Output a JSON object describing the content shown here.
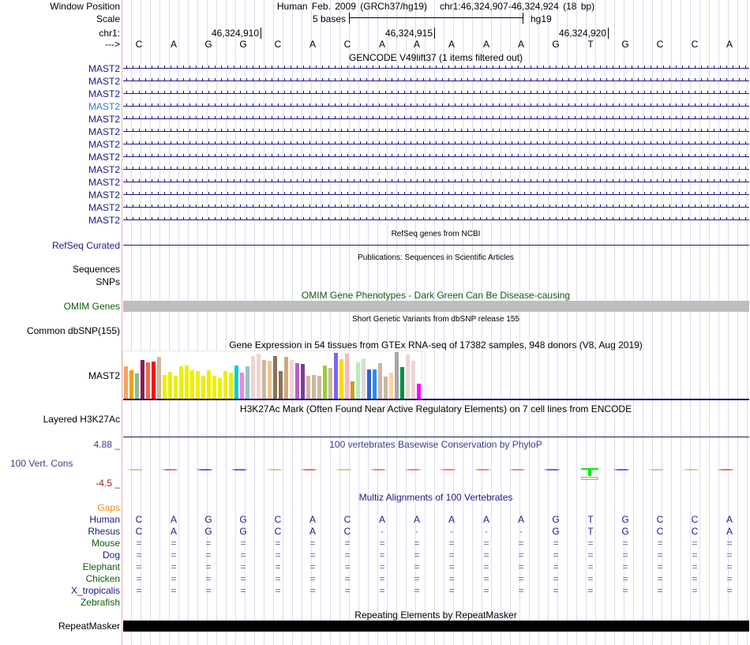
{
  "header": {
    "window_position_label": "Window Position",
    "window_position": "Human Feb. 2009 (GRCh37/hg19)   chr1:46,324,907-46,324,924 (18 bp)",
    "scale_label": "Scale",
    "scale_text": "5 bases",
    "scale_assembly": "hg19",
    "chrom_label": "chr1:",
    "strand_label": "--->",
    "positions": [
      "46,324,910",
      "46,324,915",
      "46,324,920"
    ]
  },
  "bases": [
    "C",
    "A",
    "G",
    "G",
    "C",
    "A",
    "C",
    "A",
    "A",
    "A",
    "A",
    "A",
    "G",
    "T",
    "G",
    "C",
    "C",
    "A"
  ],
  "gencode": {
    "title": "GENCODE V49lift37 (1 items filtered out)",
    "genes": [
      "MAST2",
      "MAST2",
      "MAST2",
      "MAST2",
      "MAST2",
      "MAST2",
      "MAST2",
      "MAST2",
      "MAST2",
      "MAST2",
      "MAST2",
      "MAST2",
      "MAST2"
    ],
    "highlighted_index": 3
  },
  "refseq": {
    "title": "RefSeq genes from NCBI",
    "label": "RefSeq Curated"
  },
  "publications": {
    "title": "Publications: Sequences in Scientific Articles",
    "label1": "Sequences",
    "label2": "SNPs"
  },
  "omim": {
    "title": "OMIM Gene Phenotypes - Dark Green Can Be Disease-causing",
    "label": "OMIM Genes"
  },
  "dbsnp": {
    "title": "Short Genetic Variants from dbSNP release 155",
    "label": "Common dbSNP(155)"
  },
  "gtex": {
    "title": "Gene Expression in 54 tissues from GTEx RNA-seq of 17382 samples, 948 donors (V8, Aug 2019)",
    "label": "MAST2",
    "values": [
      126,
      111,
      99,
      150,
      141,
      144,
      162,
      93,
      105,
      87,
      126,
      129,
      111,
      108,
      90,
      111,
      90,
      78,
      108,
      102,
      129,
      102,
      126,
      165,
      174,
      150,
      147,
      165,
      108,
      162,
      150,
      138,
      135,
      87,
      93,
      90,
      129,
      120,
      177,
      153,
      174,
      66,
      141,
      156,
      114,
      114,
      138,
      84,
      102,
      180,
      123,
      171,
      147,
      57
    ],
    "colors": [
      "#f4a460",
      "#f0a000",
      "#8fbc8f",
      "#8b1a5a",
      "#ee6a50",
      "#ff0000",
      "#cdb79e",
      "#eeee00",
      "#eeee00",
      "#eeee00",
      "#eeee00",
      "#eeee00",
      "#eeee00",
      "#eeee00",
      "#eeee00",
      "#eeee00",
      "#eeee00",
      "#eeee00",
      "#eeee00",
      "#eeee00",
      "#00cdcd",
      "#ee82ee",
      "#9ac0cd",
      "#eed5d2",
      "#eed5d2",
      "#cdb79e",
      "#eec591",
      "#8b7355",
      "#8b7355",
      "#cdaa7d",
      "#eed5d2",
      "#b460d0",
      "#7d3c98",
      "#cdb79e",
      "#cdb79e",
      "#cdb79e",
      "#9acd32",
      "#cdb79e",
      "#7b68ee",
      "#ffd700",
      "#ffb6c1",
      "#cd9b1d",
      "#b4eeb4",
      "#d9d9d9",
      "#3a5fcd",
      "#1e90ff",
      "#cdb79e",
      "#cdb79e",
      "#ffd39b",
      "#a6a6a6",
      "#008b45",
      "#eed5d2",
      "#eed5d2",
      "#ff00ff"
    ]
  },
  "h3k27ac": {
    "title": "H3K27Ac Mark (Often Found Near Active Regulatory Elements) on 7 cell lines from ENCODE",
    "label": "Layered H3K27Ac"
  },
  "phylop": {
    "title": "100 vertebrates Basewise Conservation by PhyloP",
    "label": "100 Vert. Cons",
    "max": "4.88 _",
    "min": "-4.5 _",
    "colors": [
      "#b8b860",
      "#ee3030",
      "#2020ee",
      "#2020ee",
      "#b8b860",
      "#ee3030",
      "#b8b860",
      "#ee5050",
      "#ee5050",
      "#ee5050",
      "#ee5050",
      "#ee5050",
      "#2020ee",
      "#00ee00",
      "#2020ee",
      "#b8b860",
      "#b8b860",
      "#ee3030"
    ]
  },
  "multiz": {
    "title": "Multiz Alignments of 100 Vertebrates",
    "gaps_label": "Gaps",
    "species": [
      {
        "name": "Human",
        "color": "navy",
        "seq": [
          "C",
          "A",
          "G",
          "G",
          "C",
          "A",
          "C",
          "A",
          "A",
          "A",
          "A",
          "A",
          "G",
          "T",
          "G",
          "C",
          "C",
          "A"
        ]
      },
      {
        "name": "Rhesus",
        "color": "navy",
        "seq": [
          "C",
          "A",
          "G",
          "G",
          "C",
          "A",
          "C",
          "-",
          "-",
          "-",
          "-",
          "-",
          "G",
          "T",
          "G",
          "C",
          "C",
          "A"
        ]
      },
      {
        "name": "Mouse",
        "color": "green",
        "seq": [
          "=",
          "=",
          "=",
          "=",
          "=",
          "=",
          "=",
          "=",
          "=",
          "=",
          "=",
          "=",
          "=",
          "=",
          "=",
          "=",
          "=",
          "="
        ]
      },
      {
        "name": "Dog",
        "color": "navy",
        "seq": [
          "=",
          "=",
          "=",
          "=",
          "=",
          "=",
          "=",
          "=",
          "=",
          "=",
          "=",
          "=",
          "=",
          "=",
          "=",
          "=",
          "=",
          "="
        ]
      },
      {
        "name": "Elephant",
        "color": "green",
        "seq": [
          "=",
          "=",
          "=",
          "=",
          "=",
          "=",
          "=",
          "=",
          "=",
          "=",
          "=",
          "=",
          "=",
          "=",
          "=",
          "=",
          "=",
          "="
        ]
      },
      {
        "name": "Chicken",
        "color": "green",
        "seq": [
          "=",
          "=",
          "=",
          "=",
          "=",
          "=",
          "=",
          "=",
          "=",
          "=",
          "=",
          "=",
          "=",
          "=",
          "=",
          "=",
          "=",
          "="
        ]
      },
      {
        "name": "X_tropicalis",
        "color": "navy",
        "seq": [
          "=",
          "=",
          "=",
          "=",
          "=",
          "=",
          "=",
          "=",
          "=",
          "=",
          "=",
          "=",
          "=",
          "=",
          "=",
          "=",
          "=",
          "="
        ]
      },
      {
        "name": "Zebrafish",
        "color": "green",
        "seq": []
      }
    ]
  },
  "repeatmasker": {
    "title": "Repeating Elements by RepeatMasker",
    "label": "RepeatMasker"
  }
}
